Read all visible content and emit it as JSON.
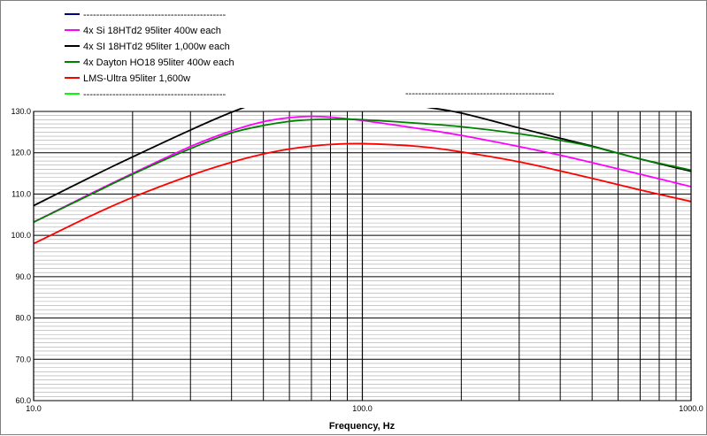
{
  "chart_data": {
    "type": "line",
    "title": "",
    "xlabel": "Frequency, Hz",
    "ylabel": "",
    "x_scale": "log",
    "xlim": [
      10,
      1000
    ],
    "ylim": [
      60,
      130
    ],
    "grid": true,
    "legend_position": "top-left",
    "x_tick_labels": [
      "10.0",
      "100.0",
      "1000.0"
    ],
    "y_tick_labels": [
      "130.0",
      "120.0",
      "110.0",
      "100.0",
      "90.0",
      "80.0",
      "70.0",
      "60.0"
    ],
    "legend": [
      {
        "label": "--------------------------------------------",
        "color": "#000080"
      },
      {
        "label": "4x Si 18HTd2 95liter 400w each",
        "color": "#ff00ff"
      },
      {
        "label": "4x SI 18HTd2 95liter 1,000w each",
        "color": "#000000"
      },
      {
        "label": "4x Dayton HO18 95liter 400w each",
        "color": "#008000"
      },
      {
        "label": "LMS-Ultra 95liter 1,600w",
        "color": "#ff0000"
      },
      {
        "label": "--------------------------------------------",
        "color": "#00ff00"
      }
    ],
    "extra_annotation": "----------------------------------------------",
    "series": [
      {
        "name": "4x Si 18HTd2 95liter 400w each",
        "color": "#ff00ff",
        "x": [
          10,
          15,
          20,
          30,
          40,
          50,
          60,
          70,
          80,
          100,
          150,
          200,
          300,
          400,
          500,
          700,
          1000
        ],
        "y": [
          103.2,
          110.2,
          115.0,
          121.5,
          125.3,
          127.5,
          128.5,
          128.8,
          128.6,
          127.8,
          125.8,
          124.2,
          121.5,
          119.4,
          117.6,
          114.8,
          111.8
        ]
      },
      {
        "name": "4x SI 18HTd2 95liter 1,000w each",
        "color": "#000000",
        "x": [
          10,
          15,
          20,
          30,
          40,
          50,
          60,
          70,
          80,
          100,
          150,
          200,
          300,
          400,
          500,
          700,
          1000
        ],
        "y": [
          107.2,
          114.2,
          119.0,
          125.5,
          129.8,
          132.5,
          133.6,
          134.2,
          134.3,
          134.0,
          131.3,
          129.6,
          126.0,
          123.5,
          121.6,
          118.5,
          115.5
        ]
      },
      {
        "name": "4x Dayton HO18 95liter 400w each",
        "color": "#008000",
        "x": [
          10,
          15,
          20,
          30,
          40,
          50,
          60,
          70,
          80,
          100,
          150,
          200,
          300,
          400,
          500,
          700,
          1000
        ],
        "y": [
          103.2,
          110.0,
          114.8,
          121.0,
          124.8,
          126.6,
          127.6,
          128.0,
          128.1,
          128.0,
          127.1,
          126.3,
          124.6,
          123.0,
          121.5,
          118.5,
          115.8
        ]
      },
      {
        "name": "LMS-Ultra 95liter 1,600w",
        "color": "#ff0000",
        "x": [
          10,
          15,
          20,
          30,
          40,
          50,
          60,
          70,
          80,
          100,
          150,
          200,
          300,
          400,
          500,
          700,
          1000
        ],
        "y": [
          98.0,
          104.8,
          109.2,
          114.5,
          117.7,
          119.7,
          120.9,
          121.6,
          122.0,
          122.2,
          121.5,
          120.2,
          117.8,
          115.6,
          113.8,
          111.0,
          108.2
        ]
      }
    ]
  }
}
